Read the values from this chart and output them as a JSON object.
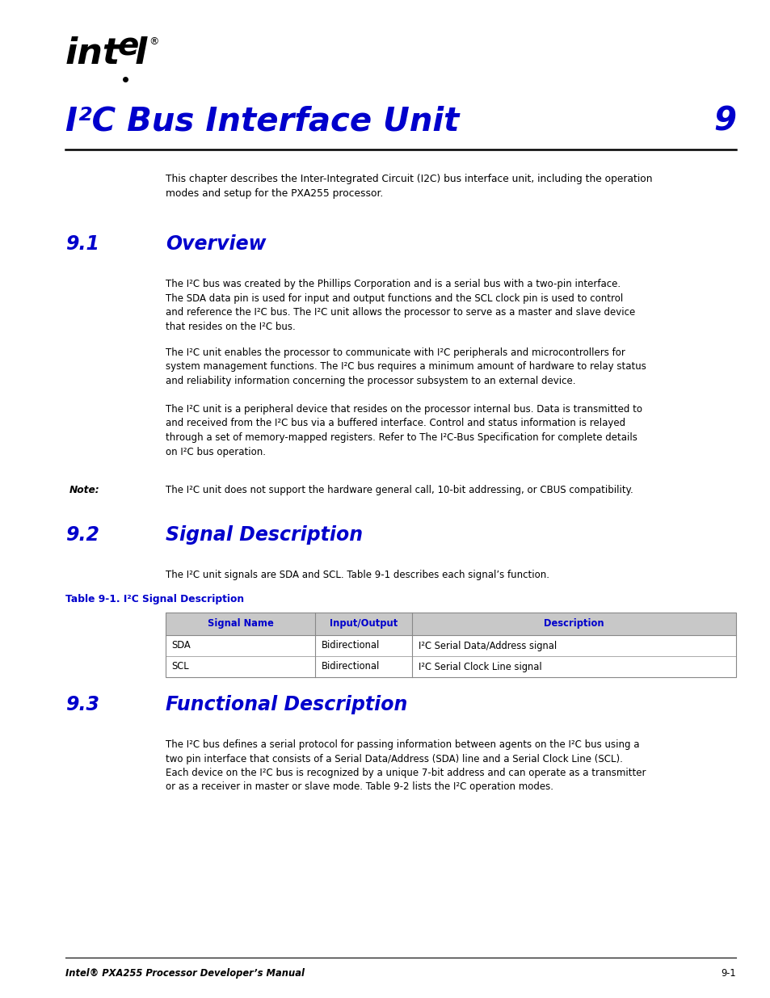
{
  "page_bg": "#ffffff",
  "blue_color": "#0000cc",
  "black_color": "#000000",
  "gray_header_bg": "#c8c8c8",
  "table_border": "#888888",
  "chapter_title": "I²C Bus Interface Unit",
  "chapter_number": "9",
  "intro_text": "This chapter describes the Inter-Integrated Circuit (I2C) bus interface unit, including the operation\nmodes and setup for the PXA255 processor.",
  "section1_num": "9.1",
  "section1_title": "Overview",
  "section1_para1": "The I²C bus was created by the Phillips Corporation and is a serial bus with a two-pin interface.\nThe SDA data pin is used for input and output functions and the SCL clock pin is used to control\nand reference the I²C bus. The I²C unit allows the processor to serve as a master and slave device\nthat resides on the I²C bus.",
  "section1_para2": "The I²C unit enables the processor to communicate with I²C peripherals and microcontrollers for\nsystem management functions. The I²C bus requires a minimum amount of hardware to relay status\nand reliability information concerning the processor subsystem to an external device.",
  "section1_para3": "The I²C unit is a peripheral device that resides on the processor internal bus. Data is transmitted to\nand received from the I²C bus via a buffered interface. Control and status information is relayed\nthrough a set of memory-mapped registers. Refer to The I²C-Bus Specification for complete details\non I²C bus operation.",
  "section1_note_label": "Note:",
  "section1_note": "The I²C unit does not support the hardware general call, 10-bit addressing, or CBUS compatibility.",
  "section2_num": "9.2",
  "section2_title": "Signal Description",
  "section2_intro": "The I²C unit signals are SDA and SCL. Table 9-1 describes each signal’s function.",
  "table_title": "Table 9-1. I²C Signal Description",
  "table_headers": [
    "Signal Name",
    "Input/Output",
    "Description"
  ],
  "table_rows": [
    [
      "SDA",
      "Bidirectional",
      "I²C Serial Data/Address signal"
    ],
    [
      "SCL",
      "Bidirectional",
      "I²C Serial Clock Line signal"
    ]
  ],
  "section3_num": "9.3",
  "section3_title": "Functional Description",
  "section3_para": "The I²C bus defines a serial protocol for passing information between agents on the I²C bus using a\ntwo pin interface that consists of a Serial Data/Address (SDA) line and a Serial Clock Line (SCL).\nEach device on the I²C bus is recognized by a unique 7-bit address and can operate as a transmitter\nor as a receiver in master or slave mode. Table 9-2 lists the I²C operation modes.",
  "footer_left": "Intel® PXA255 Processor Developer’s Manual",
  "footer_right": "9-1",
  "lm": 0.085,
  "rm": 0.955,
  "cl": 0.215
}
